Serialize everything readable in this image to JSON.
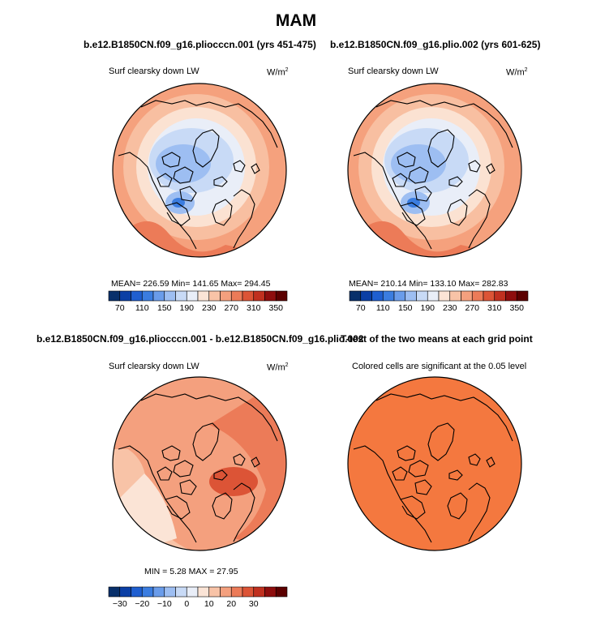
{
  "page": {
    "title": "MAM"
  },
  "panels": [
    {
      "id": "panel-case1",
      "title": "b.e12.B1850CN.f09_g16.pliocccn.001 (yrs 451-475)",
      "left_label": "Surf clearsky down LW",
      "units": "W/m",
      "units_sup": "2",
      "stats": "MEAN= 226.59    Min= 141.65    Max= 294.45",
      "colorbar": "abs"
    },
    {
      "id": "panel-case2",
      "title": "b.e12.B1850CN.f09_g16.plio.002 (yrs 601-625)",
      "left_label": "Surf clearsky down LW",
      "units": "W/m",
      "units_sup": "2",
      "stats": "MEAN= 210.14    Min= 133.10    Max= 282.83",
      "colorbar": "abs"
    },
    {
      "id": "panel-diff",
      "title": "b.e12.B1850CN.f09_g16.pliocccn.001 - b.e12.B1850CN.f09_g16.plio.002",
      "left_label": "Surf clearsky down LW",
      "units": "W/m",
      "units_sup": "2",
      "stats": "MIN =    5.28  MAX =   27.95",
      "colorbar": "diff"
    },
    {
      "id": "panel-ttest",
      "title": "T-test of the two means at each grid point",
      "left_label": "Colored cells are significant at the 0.05 level",
      "units": "",
      "units_sup": "",
      "stats": "",
      "colorbar": ""
    }
  ],
  "chart_data": [
    {
      "type": "heatmap",
      "projection": "north polar stereographic",
      "title": "b.e12.B1850CN.f09_g16.pliocccn.001 (yrs 451-475)",
      "variable": "Surf clearsky down LW",
      "units": "W/m2",
      "mean": 226.59,
      "min": 141.65,
      "max": 294.45,
      "colorbar_levels": [
        70,
        90,
        110,
        130,
        150,
        170,
        190,
        210,
        230,
        250,
        270,
        290,
        310,
        330,
        350
      ],
      "colorbar_tick_labels": [
        "70",
        "110",
        "150",
        "190",
        "230",
        "270",
        "310",
        "350"
      ]
    },
    {
      "type": "heatmap",
      "projection": "north polar stereographic",
      "title": "b.e12.B1850CN.f09_g16.plio.002 (yrs 601-625)",
      "variable": "Surf clearsky down LW",
      "units": "W/m2",
      "mean": 210.14,
      "min": 133.1,
      "max": 282.83,
      "colorbar_levels": [
        70,
        90,
        110,
        130,
        150,
        170,
        190,
        210,
        230,
        250,
        270,
        290,
        310,
        330,
        350
      ],
      "colorbar_tick_labels": [
        "70",
        "110",
        "150",
        "190",
        "230",
        "270",
        "310",
        "350"
      ]
    },
    {
      "type": "heatmap",
      "projection": "north polar stereographic",
      "title": "b.e12.B1850CN.f09_g16.pliocccn.001 - b.e12.B1850CN.f09_g16.plio.002",
      "variable": "Surf clearsky down LW",
      "units": "W/m2",
      "min": 5.28,
      "max": 27.95,
      "colorbar_levels": [
        -35,
        -30,
        -25,
        -20,
        -15,
        -10,
        -5,
        0,
        5,
        10,
        15,
        20,
        25,
        30,
        35
      ],
      "colorbar_tick_labels": [
        "−30",
        "−20",
        "−10",
        "0",
        "10",
        "20",
        "30"
      ]
    },
    {
      "type": "heatmap",
      "projection": "north polar stereographic",
      "title": "T-test of the two means at each grid point",
      "note": "Colored cells are significant at the 0.05 level",
      "significance_level": 0.05
    }
  ],
  "colors": {
    "abs_palette": [
      "#08306b",
      "#0b3fa5",
      "#1f5fd0",
      "#3b7de0",
      "#6a9cea",
      "#9dbef2",
      "#c8daf6",
      "#e9eef8",
      "#fbe4d6",
      "#f8c3a7",
      "#f4a07e",
      "#ec7b58",
      "#dc5436",
      "#c0301f",
      "#8e0d0d",
      "#5c0000"
    ],
    "diff_palette": [
      "#08306b",
      "#0b3fa5",
      "#1f5fd0",
      "#3b7de0",
      "#6a9cea",
      "#9dbef2",
      "#c8daf6",
      "#e9eef8",
      "#fbe4d6",
      "#f8c3a7",
      "#f4a07e",
      "#ec7b58",
      "#dc5436",
      "#c0301f",
      "#8e0d0d",
      "#5c0000"
    ],
    "ttest_fill": "#f4783f",
    "coastline": "#000000"
  }
}
